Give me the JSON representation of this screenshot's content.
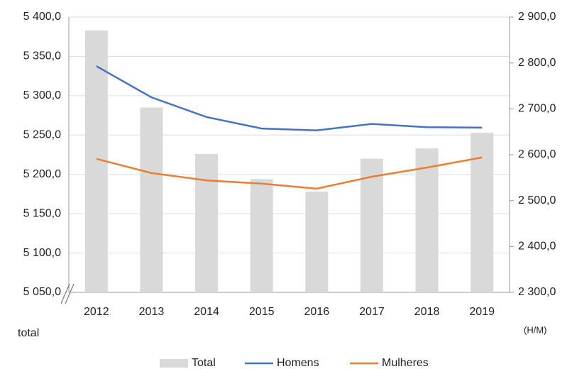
{
  "chart_data": {
    "type": "bar_line",
    "categories": [
      "2012",
      "2013",
      "2014",
      "2015",
      "2016",
      "2017",
      "2018",
      "2019"
    ],
    "series": [
      {
        "name": "Total",
        "color": "#d9d9d9",
        "axis": "y",
        "type": "bar",
        "values": [
          5383,
          5285,
          5226,
          5194,
          5178,
          5220,
          5233,
          5253
        ]
      },
      {
        "name": "Homens",
        "color": "#4472c4",
        "axis": "y2",
        "type": "line",
        "values": [
          2793,
          2725,
          2682,
          2657,
          2653,
          2667,
          2660,
          2659
        ]
      },
      {
        "name": "Mulheres",
        "color": "#ed7d31",
        "axis": "y2",
        "type": "line",
        "values": [
          2591,
          2560,
          2544,
          2537,
          2526,
          2552,
          2572,
          2594
        ]
      }
    ],
    "ylabel": "total",
    "y2label": "(H/M)",
    "ylim": [
      5050,
      5400
    ],
    "yticks": [
      {
        "value": 5050,
        "label": "5 050,0"
      },
      {
        "value": 5100,
        "label": "5 100,0"
      },
      {
        "value": 5150,
        "label": "5 150,0"
      },
      {
        "value": 5200,
        "label": "5 200,0"
      },
      {
        "value": 5250,
        "label": "5 250,0"
      },
      {
        "value": 5300,
        "label": "5 300,0"
      },
      {
        "value": 5350,
        "label": "5 350,0"
      },
      {
        "value": 5400,
        "label": "5 400,0"
      }
    ],
    "y2lim": [
      2300,
      2900
    ],
    "y2ticks": [
      {
        "value": 2300,
        "label": "2 300,0"
      },
      {
        "value": 2400,
        "label": "2 400,0"
      },
      {
        "value": 2500,
        "label": "2 500,0"
      },
      {
        "value": 2600,
        "label": "2 600,0"
      },
      {
        "value": 2700,
        "label": "2 700,0"
      },
      {
        "value": 2800,
        "label": "2 800,0"
      },
      {
        "value": 2900,
        "label": "2 900,0"
      }
    ],
    "grid": true,
    "legend": "bottom"
  }
}
